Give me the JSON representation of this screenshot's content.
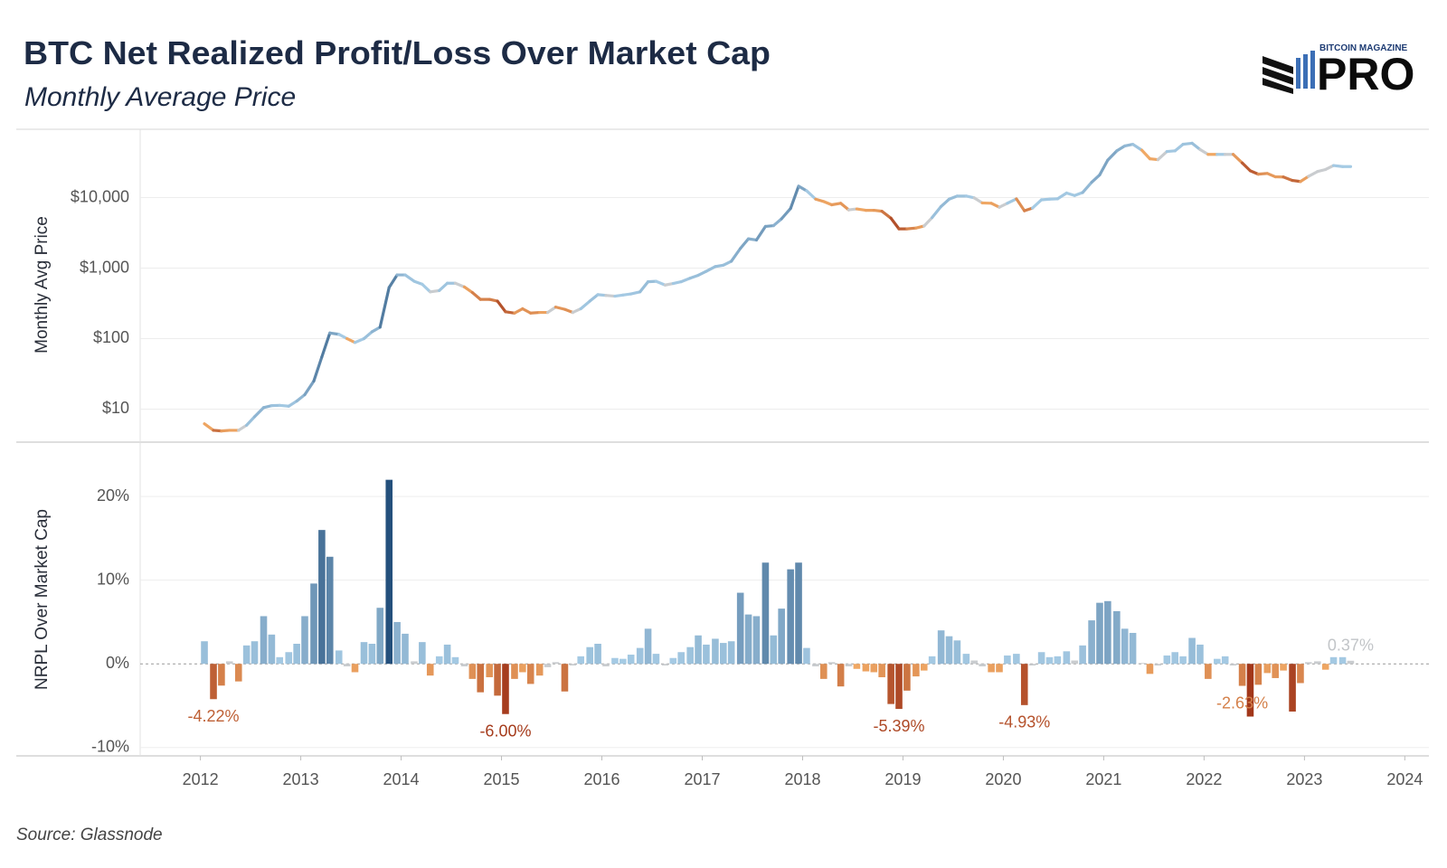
{
  "logo": {
    "top": "BITCOIN MAGAZINE",
    "main": "PRO"
  },
  "source": "Source: Glassnode",
  "chart_data": [
    {
      "type": "line",
      "title": "BTC Net Realized Profit/Loss Over Market Cap",
      "subtitle": "Monthly Average Price",
      "y_label": "Monthly Avg Price",
      "log_scale": true,
      "grid": true,
      "xlim": [
        2011.4,
        2024.24
      ],
      "ylim": [
        3.4,
        93000
      ],
      "yticks": [
        {
          "value": 10,
          "label": "$10"
        },
        {
          "value": 100,
          "label": "$100"
        },
        {
          "value": 1000,
          "label": "$1,000"
        },
        {
          "value": 10000,
          "label": "$10,000"
        }
      ],
      "x": [
        2012.04,
        2012.13,
        2012.21,
        2012.29,
        2012.38,
        2012.46,
        2012.54,
        2012.63,
        2012.71,
        2012.79,
        2012.88,
        2012.96,
        2013.04,
        2013.13,
        2013.21,
        2013.29,
        2013.38,
        2013.46,
        2013.54,
        2013.63,
        2013.71,
        2013.79,
        2013.88,
        2013.96,
        2014.04,
        2014.13,
        2014.21,
        2014.29,
        2014.38,
        2014.46,
        2014.54,
        2014.63,
        2014.71,
        2014.79,
        2014.88,
        2014.96,
        2015.04,
        2015.13,
        2015.21,
        2015.29,
        2015.38,
        2015.46,
        2015.54,
        2015.63,
        2015.71,
        2015.79,
        2015.88,
        2015.96,
        2016.04,
        2016.13,
        2016.21,
        2016.29,
        2016.38,
        2016.46,
        2016.54,
        2016.63,
        2016.71,
        2016.79,
        2016.88,
        2016.96,
        2017.04,
        2017.13,
        2017.21,
        2017.29,
        2017.38,
        2017.46,
        2017.54,
        2017.63,
        2017.71,
        2017.79,
        2017.88,
        2017.96,
        2018.04,
        2018.13,
        2018.21,
        2018.29,
        2018.38,
        2018.46,
        2018.54,
        2018.63,
        2018.71,
        2018.79,
        2018.88,
        2018.96,
        2019.04,
        2019.13,
        2019.21,
        2019.29,
        2019.38,
        2019.46,
        2019.54,
        2019.63,
        2019.71,
        2019.79,
        2019.88,
        2019.96,
        2020.04,
        2020.13,
        2020.21,
        2020.29,
        2020.38,
        2020.46,
        2020.54,
        2020.63,
        2020.71,
        2020.79,
        2020.88,
        2020.96,
        2021.04,
        2021.13,
        2021.21,
        2021.29,
        2021.38,
        2021.46,
        2021.54,
        2021.63,
        2021.71,
        2021.79,
        2021.88,
        2021.96,
        2022.04,
        2022.13,
        2022.21,
        2022.29,
        2022.38,
        2022.46,
        2022.54,
        2022.63,
        2022.71,
        2022.79,
        2022.88,
        2022.96,
        2023.04,
        2023.13,
        2023.21,
        2023.29,
        2023.38,
        2023.46
      ],
      "values": [
        6.2,
        5.0,
        4.9,
        5.0,
        5.0,
        5.9,
        7.8,
        10.5,
        11.2,
        11.3,
        11.0,
        13.0,
        16,
        25,
        55,
        120,
        115,
        100,
        88,
        100,
        125,
        145,
        530,
        800,
        800,
        650,
        590,
        460,
        480,
        610,
        610,
        540,
        450,
        360,
        360,
        340,
        240,
        230,
        265,
        230,
        235,
        235,
        280,
        260,
        235,
        265,
        340,
        420,
        410,
        400,
        415,
        430,
        460,
        640,
        650,
        575,
        605,
        640,
        720,
        790,
        900,
        1050,
        1100,
        1250,
        1900,
        2600,
        2500,
        3900,
        4000,
        5000,
        7000,
        14500,
        12500,
        9500,
        8800,
        7900,
        8300,
        6700,
        6900,
        6600,
        6600,
        6400,
        5100,
        3600,
        3600,
        3700,
        3950,
        5200,
        7500,
        9500,
        10500,
        10500,
        9900,
        8400,
        8300,
        7300,
        8300,
        9600,
        6500,
        7100,
        9300,
        9500,
        9600,
        11600,
        10700,
        11800,
        16500,
        21000,
        34000,
        46000,
        54000,
        57000,
        47000,
        35500,
        34500,
        45000,
        46000,
        57000,
        59000,
        48000,
        41000,
        41000,
        41000,
        41000,
        31000,
        24000,
        21500,
        22000,
        19700,
        19600,
        17500,
        16900,
        20000,
        23400,
        25000,
        28500,
        27500,
        27500
      ]
    },
    {
      "type": "bar",
      "y_label": "NRPL Over Market Cap",
      "grid": true,
      "xlim": [
        2011.4,
        2024.24
      ],
      "xticks": [
        2012,
        2013,
        2014,
        2015,
        2016,
        2017,
        2018,
        2019,
        2020,
        2021,
        2022,
        2023,
        2024
      ],
      "ylim": [
        -11,
        26.5
      ],
      "yticks": [
        {
          "value": -10,
          "label": "-10%"
        },
        {
          "value": 0,
          "label": "0%"
        },
        {
          "value": 10,
          "label": "10%"
        },
        {
          "value": 20,
          "label": "20%"
        }
      ],
      "colors": {
        "positive": [
          "#a9cee7",
          "#24507c"
        ],
        "negative": [
          "#f8b46c",
          "#a2371a"
        ],
        "neutral": "#c9cccf"
      },
      "x": [
        2012.04,
        2012.13,
        2012.21,
        2012.29,
        2012.38,
        2012.46,
        2012.54,
        2012.63,
        2012.71,
        2012.79,
        2012.88,
        2012.96,
        2013.04,
        2013.13,
        2013.21,
        2013.29,
        2013.38,
        2013.46,
        2013.54,
        2013.63,
        2013.71,
        2013.79,
        2013.88,
        2013.96,
        2014.04,
        2014.13,
        2014.21,
        2014.29,
        2014.38,
        2014.46,
        2014.54,
        2014.63,
        2014.71,
        2014.79,
        2014.88,
        2014.96,
        2015.04,
        2015.13,
        2015.21,
        2015.29,
        2015.38,
        2015.46,
        2015.54,
        2015.63,
        2015.71,
        2015.79,
        2015.88,
        2015.96,
        2016.04,
        2016.13,
        2016.21,
        2016.29,
        2016.38,
        2016.46,
        2016.54,
        2016.63,
        2016.71,
        2016.79,
        2016.88,
        2016.96,
        2017.04,
        2017.13,
        2017.21,
        2017.29,
        2017.38,
        2017.46,
        2017.54,
        2017.63,
        2017.71,
        2017.79,
        2017.88,
        2017.96,
        2018.04,
        2018.13,
        2018.21,
        2018.29,
        2018.38,
        2018.46,
        2018.54,
        2018.63,
        2018.71,
        2018.79,
        2018.88,
        2018.96,
        2019.04,
        2019.13,
        2019.21,
        2019.29,
        2019.38,
        2019.46,
        2019.54,
        2019.63,
        2019.71,
        2019.79,
        2019.88,
        2019.96,
        2020.04,
        2020.13,
        2020.21,
        2020.29,
        2020.38,
        2020.46,
        2020.54,
        2020.63,
        2020.71,
        2020.79,
        2020.88,
        2020.96,
        2021.04,
        2021.13,
        2021.21,
        2021.29,
        2021.38,
        2021.46,
        2021.54,
        2021.63,
        2021.71,
        2021.79,
        2021.88,
        2021.96,
        2022.04,
        2022.13,
        2022.21,
        2022.29,
        2022.38,
        2022.46,
        2022.54,
        2022.63,
        2022.71,
        2022.79,
        2022.88,
        2022.96,
        2023.04,
        2023.13,
        2023.21,
        2023.29,
        2023.38,
        2023.46
      ],
      "values": [
        2.7,
        -4.22,
        -2.6,
        0.3,
        -2.1,
        2.2,
        2.7,
        5.7,
        3.5,
        0.8,
        1.4,
        2.4,
        5.7,
        9.6,
        16.0,
        12.8,
        1.6,
        -0.3,
        -1.0,
        2.6,
        2.4,
        6.7,
        22.0,
        5.0,
        3.6,
        0.3,
        2.6,
        -1.4,
        0.9,
        2.3,
        0.8,
        -0.3,
        -1.8,
        -3.4,
        -1.6,
        -3.8,
        -6.0,
        -1.8,
        -1.0,
        -2.4,
        -1.4,
        -0.4,
        0.2,
        -3.3,
        -0.2,
        0.9,
        2.0,
        2.4,
        -0.3,
        0.7,
        0.6,
        1.1,
        1.9,
        4.2,
        1.2,
        -0.2,
        0.7,
        1.4,
        2.0,
        3.4,
        2.3,
        3.0,
        2.5,
        2.7,
        8.5,
        5.9,
        5.7,
        12.1,
        3.4,
        6.6,
        11.3,
        12.1,
        1.9,
        -0.3,
        -1.8,
        0.2,
        -2.7,
        -0.3,
        -0.6,
        -0.9,
        -1.0,
        -1.6,
        -4.8,
        -5.39,
        -3.2,
        -1.5,
        -0.8,
        0.9,
        4.0,
        3.3,
        2.8,
        1.2,
        0.4,
        -0.3,
        -1.0,
        -1.0,
        1.0,
        1.2,
        -4.93,
        -0.2,
        1.4,
        0.8,
        0.9,
        1.5,
        0.4,
        2.2,
        5.2,
        7.3,
        7.5,
        6.3,
        4.2,
        3.7,
        0.1,
        -1.2,
        -0.2,
        1.0,
        1.4,
        0.9,
        3.1,
        2.3,
        -1.8,
        0.6,
        0.9,
        -0.2,
        -2.63,
        -6.3,
        -2.5,
        -1.1,
        -1.7,
        -0.8,
        -5.7,
        -2.3,
        0.2,
        0.3,
        -0.7,
        0.8,
        0.8,
        0.37
      ],
      "value_labels": [
        null,
        "-4.22%",
        null,
        null,
        null,
        null,
        null,
        null,
        null,
        null,
        null,
        null,
        null,
        null,
        null,
        null,
        null,
        null,
        null,
        null,
        null,
        null,
        null,
        null,
        null,
        null,
        null,
        null,
        null,
        null,
        null,
        null,
        null,
        null,
        null,
        null,
        "-6.00%",
        null,
        null,
        null,
        null,
        null,
        null,
        null,
        null,
        null,
        null,
        null,
        null,
        null,
        null,
        null,
        null,
        null,
        null,
        null,
        null,
        null,
        null,
        null,
        null,
        null,
        null,
        null,
        null,
        null,
        null,
        null,
        null,
        null,
        null,
        null,
        null,
        null,
        null,
        null,
        null,
        null,
        null,
        null,
        null,
        null,
        null,
        "-5.39%",
        null,
        null,
        null,
        null,
        null,
        null,
        null,
        null,
        null,
        null,
        null,
        null,
        null,
        null,
        "-4.93%",
        null,
        null,
        null,
        null,
        null,
        null,
        null,
        null,
        null,
        null,
        null,
        null,
        null,
        null,
        null,
        null,
        null,
        null,
        null,
        null,
        null,
        null,
        null,
        null,
        null,
        "-2.63%",
        null,
        null,
        null,
        null,
        null,
        null,
        null,
        null,
        null,
        null,
        null,
        null,
        "0.37%"
      ]
    }
  ]
}
